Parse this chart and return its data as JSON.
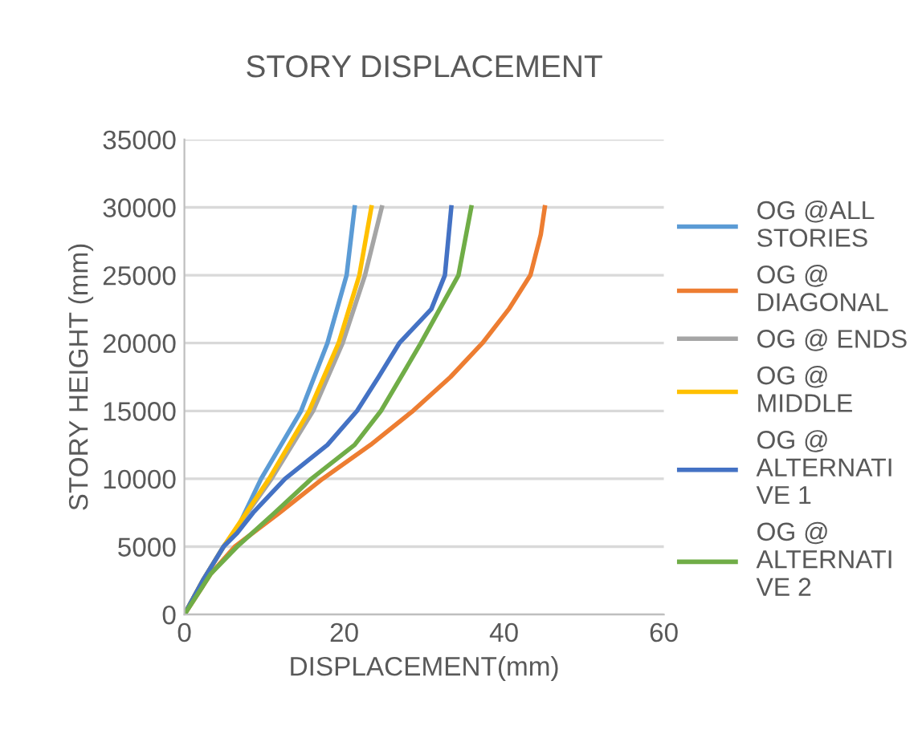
{
  "chart_data": {
    "type": "line",
    "title": "STORY DISPLACEMENT",
    "xlabel": "DISPLACEMENT(mm)",
    "ylabel": "STORY HEIGHT (mm)",
    "xlim": [
      0,
      60
    ],
    "xticks": [
      0,
      20,
      40,
      60
    ],
    "ylim": [
      0,
      35000
    ],
    "yticks": [
      0,
      5000,
      10000,
      15000,
      20000,
      25000,
      30000,
      35000
    ],
    "grid": "y",
    "legend": "right",
    "marker": "none",
    "line_style": "solid",
    "series": [
      {
        "name": "OG @ALL STORIES",
        "color": "#5b9bd5",
        "x": [
          0,
          2.3,
          4.9,
          6.6,
          9.6,
          14.6,
          17.9,
          20.3,
          21.3
        ],
        "values": [
          0,
          2500,
          5000,
          6300,
          10000,
          15000,
          20000,
          25000,
          30000
        ]
      },
      {
        "name": "OG @ DIAGONAL",
        "color": "#ed7d31",
        "x": [
          0,
          3.3,
          6.3,
          11.9,
          17.3,
          23.3,
          28.6,
          33.3,
          37.3,
          40.6,
          43.3,
          44.6,
          45.1
        ],
        "values": [
          0,
          3000,
          5000,
          7500,
          10000,
          12500,
          15000,
          17500,
          20000,
          22500,
          25000,
          28000,
          30000
        ]
      },
      {
        "name": "OG @ ENDS",
        "color": "#a5a5a5",
        "x": [
          0,
          2.3,
          4.9,
          10.9,
          16.1,
          19.8,
          22.6,
          24.7
        ],
        "values": [
          0,
          2500,
          5000,
          10000,
          15000,
          20000,
          25000,
          30000
        ]
      },
      {
        "name": "OG @ MIDDLE",
        "color": "#ffc000",
        "x": [
          0,
          2.3,
          4.9,
          10.6,
          15.6,
          19.3,
          21.9,
          23.4
        ],
        "values": [
          0,
          2500,
          5000,
          10000,
          15000,
          20000,
          25000,
          30000
        ]
      },
      {
        "name": "OG @ ALTERNATIVE 1",
        "color": "#4472c4",
        "x": [
          0,
          2.3,
          4.9,
          6.6,
          8.6,
          12.6,
          17.9,
          21.6,
          24.3,
          26.9,
          30.9,
          32.6,
          33.4
        ],
        "values": [
          0,
          2500,
          5000,
          6000,
          7500,
          10000,
          12500,
          15000,
          17500,
          20000,
          22500,
          25000,
          30000
        ]
      },
      {
        "name": "OG @ ALTERNATIVE 2",
        "color": "#70ad47",
        "x": [
          0,
          3.3,
          6.6,
          11.3,
          15.9,
          21.3,
          24.6,
          29.6,
          34.3,
          35.9
        ],
        "values": [
          0,
          3000,
          5000,
          7500,
          10000,
          12500,
          15000,
          20000,
          25000,
          30000
        ]
      }
    ]
  }
}
